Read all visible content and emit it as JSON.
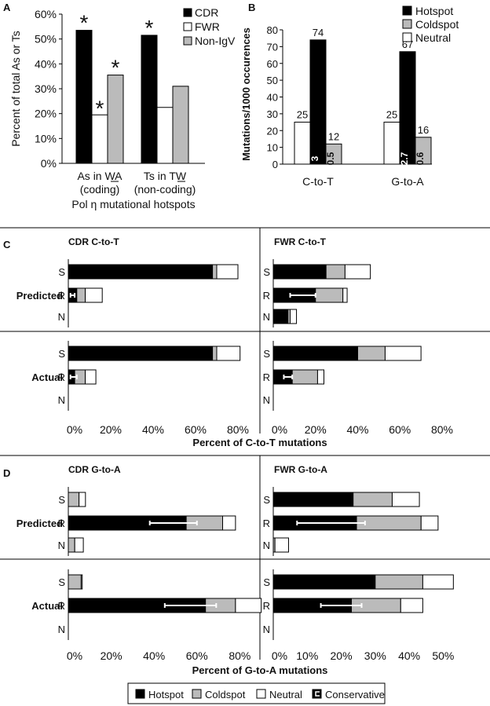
{
  "colors": {
    "black": "#000000",
    "gray": "#bbbbbb",
    "white": "#ffffff",
    "line": "#000000"
  },
  "panel_letters": {
    "a": "A",
    "b": "B",
    "c": "C",
    "d": "D"
  },
  "legend_bottom": {
    "items": [
      {
        "label": "Hotspot",
        "color": "#000000"
      },
      {
        "label": "Coldspot",
        "color": "#bbbbbb"
      },
      {
        "label": "Neutral",
        "color": "#ffffff"
      },
      {
        "label": "Conservative",
        "color": "bracket"
      }
    ]
  },
  "chart_data": [
    {
      "id": "A",
      "type": "bar",
      "ylabel": "Percent of total As or Ts",
      "ylim": [
        0,
        60
      ],
      "yticks": [
        "0%",
        "10%",
        "20%",
        "30%",
        "40%",
        "50%",
        "60%"
      ],
      "categories": [
        {
          "line1": "As in WA",
          "line2": "(coding)"
        },
        {
          "line1": "Ts in TW",
          "line2": "(non-coding)"
        }
      ],
      "xtitle": "Pol η mutational hotspots",
      "legend": [
        {
          "label": "CDR",
          "color": "#000000"
        },
        {
          "label": "FWR",
          "color": "#ffffff"
        },
        {
          "label": "Non-IgV",
          "color": "#bbbbbb"
        }
      ],
      "series": [
        {
          "name": "CDR",
          "color": "#000000",
          "values": [
            53.5,
            51.5
          ],
          "stars": [
            true,
            true
          ]
        },
        {
          "name": "FWR",
          "color": "#ffffff",
          "values": [
            19.5,
            22.5
          ],
          "stars": [
            true,
            false
          ]
        },
        {
          "name": "Non-IgV",
          "color": "#bbbbbb",
          "values": [
            35.5,
            31
          ],
          "stars": [
            true,
            false
          ]
        }
      ],
      "star": "*"
    },
    {
      "id": "B",
      "type": "bar",
      "ylabel": "Mutations/1000 occurences",
      "ylim": [
        0,
        80
      ],
      "yticks": [
        "0",
        "10",
        "20",
        "30",
        "40",
        "50",
        "60",
        "70",
        "80"
      ],
      "categories": [
        "C-to-T",
        "G-to-A"
      ],
      "legend": [
        {
          "label": "Hotspot",
          "color": "#000000"
        },
        {
          "label": "Coldspot",
          "color": "#bbbbbb"
        },
        {
          "label": "Neutral",
          "color": "#ffffff"
        }
      ],
      "series": [
        {
          "name": "Neutral",
          "color": "#ffffff",
          "values": [
            25,
            25
          ],
          "labels": [
            "25",
            "25"
          ]
        },
        {
          "name": "Hotspot",
          "color": "#000000",
          "values": [
            74,
            67
          ],
          "labels": [
            "74",
            "67"
          ],
          "inner": [
            "3",
            "2.7"
          ]
        },
        {
          "name": "Coldspot",
          "color": "#bbbbbb",
          "values": [
            12,
            16
          ],
          "labels": [
            "12",
            "16"
          ],
          "inner": [
            "0.5",
            "0.6"
          ]
        }
      ]
    },
    {
      "id": "C",
      "type": "bar",
      "orientation": "horizontal-stacked",
      "xtitle": "Percent of C-to-T mutations",
      "group_labels": [
        "Predicted",
        "Actual"
      ],
      "row_labels": [
        "S",
        "R",
        "N"
      ],
      "subpanels": [
        {
          "title": "CDR C-to-T",
          "xmax": 80,
          "xticks": [
            "0%",
            "20%",
            "40%",
            "60%",
            "80%"
          ],
          "tick_values": [
            0,
            20,
            40,
            60,
            80
          ],
          "groups": [
            {
              "rows": [
                {
                  "row": "S",
                  "hot": 68,
                  "cold": 2,
                  "neutral": 10
                },
                {
                  "row": "R",
                  "hot": 4,
                  "cold": 4,
                  "neutral": 8,
                  "cons": [
                    1,
                    3
                  ]
                },
                {
                  "row": "N",
                  "hot": 0,
                  "cold": 0,
                  "neutral": 0
                }
              ]
            },
            {
              "rows": [
                {
                  "row": "S",
                  "hot": 68,
                  "cold": 2,
                  "neutral": 11
                },
                {
                  "row": "R",
                  "hot": 3,
                  "cold": 5,
                  "neutral": 5,
                  "cons": [
                    1,
                    4
                  ]
                },
                {
                  "row": "N",
                  "hot": 0,
                  "cold": 0,
                  "neutral": 0
                }
              ]
            }
          ]
        },
        {
          "title": "FWR C-to-T",
          "xmax": 80,
          "xticks": [
            "0%",
            "20%",
            "40%",
            "60%",
            "80%"
          ],
          "tick_values": [
            0,
            20,
            40,
            60,
            80
          ],
          "groups": [
            {
              "rows": [
                {
                  "row": "S",
                  "hot": 25,
                  "cold": 9,
                  "neutral": 12
                },
                {
                  "row": "R",
                  "hot": 20,
                  "cold": 13,
                  "neutral": 2,
                  "cons": [
                    8,
                    20
                  ]
                },
                {
                  "row": "N",
                  "hot": 7,
                  "cold": 1,
                  "neutral": 3
                }
              ]
            },
            {
              "rows": [
                {
                  "row": "S",
                  "hot": 40,
                  "cold": 13,
                  "neutral": 17
                },
                {
                  "row": "R",
                  "hot": 9,
                  "cold": 12,
                  "neutral": 3,
                  "cons": [
                    5,
                    9
                  ]
                },
                {
                  "row": "N",
                  "hot": 0,
                  "cold": 0,
                  "neutral": 0
                }
              ]
            }
          ]
        }
      ]
    },
    {
      "id": "D",
      "type": "bar",
      "orientation": "horizontal-stacked",
      "xtitle": "Percent of G-to-A mutations",
      "group_labels": [
        "Predicted",
        "Actual"
      ],
      "row_labels": [
        "S",
        "R",
        "N"
      ],
      "subpanels": [
        {
          "title": "CDR G-to-A",
          "xmax": 85,
          "xticks": [
            "0%",
            "20%",
            "40%",
            "60%",
            "80%"
          ],
          "tick_values": [
            0,
            20,
            40,
            60,
            80
          ],
          "groups": [
            {
              "rows": [
                {
                  "row": "S",
                  "hot": 0,
                  "cold": 5,
                  "neutral": 3
                },
                {
                  "row": "R",
                  "hot": 55,
                  "cold": 17,
                  "neutral": 6,
                  "cons": [
                    38,
                    60
                  ]
                },
                {
                  "row": "N",
                  "hot": 0,
                  "cold": 3,
                  "neutral": 4
                }
              ]
            },
            {
              "rows": [
                {
                  "row": "S",
                  "hot": 0,
                  "cold": 6,
                  "neutral": 0.5
                },
                {
                  "row": "R",
                  "hot": 64,
                  "cold": 14,
                  "neutral": 12,
                  "cons": [
                    45,
                    69
                  ]
                },
                {
                  "row": "N",
                  "hot": 0,
                  "cold": 0,
                  "neutral": 0
                }
              ]
            }
          ]
        },
        {
          "title": "FWR G-to-A",
          "xmax": 55,
          "xticks": [
            "0%",
            "10%",
            "20%",
            "30%",
            "40%",
            "50%"
          ],
          "tick_values": [
            0,
            10,
            20,
            30,
            40,
            50
          ],
          "groups": [
            {
              "rows": [
                {
                  "row": "S",
                  "hot": 23.5,
                  "cold": 11.5,
                  "neutral": 8
                },
                {
                  "row": "R",
                  "hot": 24.5,
                  "cold": 19,
                  "neutral": 5,
                  "cons": [
                    7,
                    27
                  ]
                },
                {
                  "row": "N",
                  "hot": 0,
                  "cold": 0.5,
                  "neutral": 4
                }
              ]
            },
            {
              "rows": [
                {
                  "row": "S",
                  "hot": 30,
                  "cold": 14,
                  "neutral": 9
                },
                {
                  "row": "R",
                  "hot": 23,
                  "cold": 14.5,
                  "neutral": 6.5,
                  "cons": [
                    14,
                    26
                  ]
                },
                {
                  "row": "N",
                  "hot": 0,
                  "cold": 0,
                  "neutral": 0
                }
              ]
            }
          ]
        }
      ]
    }
  ]
}
